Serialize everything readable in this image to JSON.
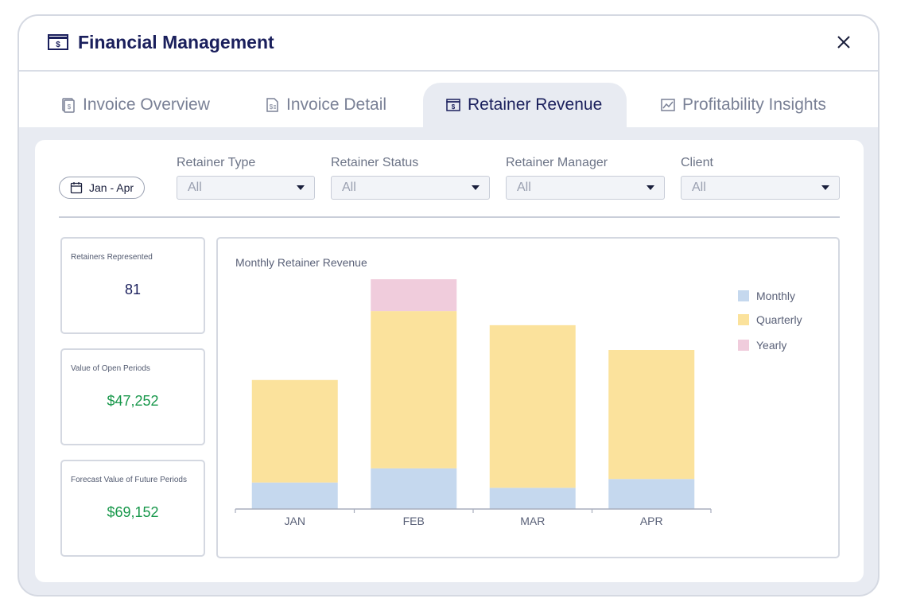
{
  "window": {
    "title": "Financial Management"
  },
  "tabs": [
    {
      "label": "Invoice Overview",
      "icon": "invoice-overview-icon"
    },
    {
      "label": "Invoice Detail",
      "icon": "invoice-detail-icon"
    },
    {
      "label": "Retainer Revenue",
      "icon": "retainer-revenue-icon",
      "active": true
    },
    {
      "label": "Profitability Insights",
      "icon": "profitability-icon"
    }
  ],
  "filters": {
    "date_range": "Jan - Apr",
    "retainer_type": {
      "label": "Retainer Type",
      "value": "All"
    },
    "retainer_status": {
      "label": "Retainer Status",
      "value": "All"
    },
    "retainer_manager": {
      "label": "Retainer Manager",
      "value": "All"
    },
    "client": {
      "label": "Client",
      "value": "All"
    }
  },
  "kpis": [
    {
      "label": "Retainers Represented",
      "value": "81",
      "color": "#1a1f5c"
    },
    {
      "label": "Value of Open Periods",
      "value": "$47,252",
      "color": "#17974a"
    },
    {
      "label": "Forecast Value of Future Periods",
      "value": "$69,152",
      "color": "#17974a"
    }
  ],
  "chart_data": {
    "type": "bar",
    "stacked": true,
    "title": "Monthly Retainer Revenue",
    "categories": [
      "JAN",
      "FEB",
      "MAR",
      "APR"
    ],
    "series": [
      {
        "name": "Monthly",
        "color": "#c5d8ee",
        "values": [
          30,
          46,
          24,
          34
        ]
      },
      {
        "name": "Quarterly",
        "color": "#fbe29c",
        "values": [
          116,
          178,
          184,
          146
        ]
      },
      {
        "name": "Yearly",
        "color": "#f0ccdc",
        "values": [
          0,
          36,
          0,
          0
        ]
      }
    ],
    "ylim": [
      0,
      270
    ],
    "grid": false,
    "legend_position": "right"
  }
}
